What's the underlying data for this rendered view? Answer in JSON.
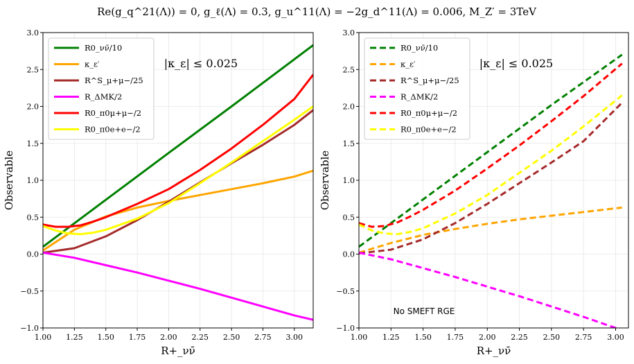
{
  "figure": {
    "title": "Re(g_q^21(Λ)) = 0,   g_ℓ(Λ) = 0.3,   g_u^11(Λ) = −2g_d^11(Λ) = 0.006,   M_Z′ = 3TeV"
  },
  "chart_data": [
    {
      "type": "line",
      "panel": "left",
      "xlabel": "R+_νν̄",
      "ylabel": "Observable",
      "xlim": [
        1.0,
        3.15
      ],
      "ylim": [
        -1.0,
        3.0
      ],
      "xticks": [
        "1.00",
        "1.25",
        "1.50",
        "1.75",
        "2.00",
        "2.25",
        "2.50",
        "2.75",
        "3.00"
      ],
      "yticks": [
        "−1.0",
        "−0.5",
        "0.0",
        "0.5",
        "1.0",
        "1.5",
        "2.0",
        "2.5",
        "3.0"
      ],
      "grid": true,
      "legend_position": "top-left",
      "annotation": "|κ_ε| ≤ 0.025",
      "line_style": "solid",
      "series": [
        {
          "name": "R0_νν̄/10",
          "color": "#008000",
          "x": [
            1.0,
            1.5,
            2.0,
            2.5,
            3.15
          ],
          "y": [
            0.1,
            0.735,
            1.37,
            2.0,
            2.83
          ]
        },
        {
          "name": "κ_ε′",
          "color": "#FFA500",
          "x": [
            1.0,
            1.25,
            1.5,
            1.75,
            2.0,
            2.25,
            2.5,
            2.75,
            3.0,
            3.15
          ],
          "y": [
            0.05,
            0.33,
            0.51,
            0.63,
            0.72,
            0.8,
            0.88,
            0.96,
            1.05,
            1.13
          ]
        },
        {
          "name": "R^S_μ+μ−/25",
          "color": "#A52A2A",
          "x": [
            1.0,
            1.25,
            1.5,
            1.75,
            2.0,
            2.25,
            2.5,
            2.75,
            3.0,
            3.15
          ],
          "y": [
            0.02,
            0.08,
            0.24,
            0.46,
            0.71,
            0.97,
            1.23,
            1.48,
            1.75,
            1.95
          ]
        },
        {
          "name": "R_ΔMK/2",
          "color": "#FF00FF",
          "x": [
            1.0,
            1.25,
            1.5,
            1.75,
            2.0,
            2.25,
            2.5,
            2.75,
            3.0,
            3.15
          ],
          "y": [
            0.02,
            -0.05,
            -0.15,
            -0.25,
            -0.36,
            -0.47,
            -0.59,
            -0.71,
            -0.83,
            -0.89
          ]
        },
        {
          "name": "R0_π0μ+μ−/2",
          "color": "#FF0000",
          "x": [
            1.0,
            1.1,
            1.2,
            1.3,
            1.4,
            1.5,
            1.75,
            2.0,
            2.25,
            2.5,
            2.75,
            3.0,
            3.15
          ],
          "y": [
            0.4,
            0.37,
            0.37,
            0.39,
            0.44,
            0.5,
            0.68,
            0.88,
            1.14,
            1.43,
            1.75,
            2.1,
            2.43
          ]
        },
        {
          "name": "R0_π0e+e−/2",
          "color": "#FFFF00",
          "x": [
            1.0,
            1.1,
            1.2,
            1.3,
            1.4,
            1.5,
            1.75,
            2.0,
            2.25,
            2.5,
            2.75,
            3.0,
            3.15
          ],
          "y": [
            0.38,
            0.32,
            0.28,
            0.27,
            0.29,
            0.33,
            0.48,
            0.69,
            0.96,
            1.24,
            1.53,
            1.82,
            2.0
          ]
        }
      ]
    },
    {
      "type": "line",
      "panel": "right",
      "xlabel": "R+_νν̄",
      "ylabel": "Observable",
      "xlim": [
        1.0,
        3.1
      ],
      "ylim": [
        -1.0,
        3.0
      ],
      "xticks": [
        "1.00",
        "1.25",
        "1.50",
        "1.75",
        "2.00",
        "2.25",
        "2.50",
        "2.75",
        "3.00"
      ],
      "yticks": [
        "−1.0",
        "−0.5",
        "0.0",
        "0.5",
        "1.0",
        "1.5",
        "2.0",
        "2.5",
        "3.0"
      ],
      "grid": true,
      "legend_position": "top-left",
      "annotation": "|κ_ε| ≤ 0.025",
      "note": "No SMEFT RGE",
      "line_style": "dashed",
      "series": [
        {
          "name": "R0_νν̄/10",
          "color": "#008000",
          "x": [
            1.0,
            1.5,
            2.0,
            2.5,
            3.05
          ],
          "y": [
            0.1,
            0.74,
            1.38,
            2.02,
            2.7
          ]
        },
        {
          "name": "κ_ε′",
          "color": "#FFA500",
          "x": [
            1.0,
            1.25,
            1.5,
            1.75,
            2.0,
            2.25,
            2.5,
            2.75,
            3.05
          ],
          "y": [
            0.02,
            0.15,
            0.26,
            0.34,
            0.41,
            0.47,
            0.52,
            0.57,
            0.63
          ]
        },
        {
          "name": "R^S_μ+μ−/25",
          "color": "#A52A2A",
          "x": [
            1.0,
            1.25,
            1.5,
            1.75,
            2.0,
            2.25,
            2.5,
            2.75,
            3.05
          ],
          "y": [
            0.01,
            0.06,
            0.2,
            0.42,
            0.68,
            0.96,
            1.24,
            1.53,
            2.05
          ]
        },
        {
          "name": "R_ΔMK/2",
          "color": "#FF00FF",
          "x": [
            1.0,
            1.25,
            1.5,
            1.75,
            2.0,
            2.25,
            2.5,
            2.75,
            3.05
          ],
          "y": [
            0.02,
            -0.07,
            -0.19,
            -0.31,
            -0.44,
            -0.57,
            -0.71,
            -0.85,
            -1.03
          ]
        },
        {
          "name": "R0_π0μ+μ−/2",
          "color": "#FF0000",
          "x": [
            1.0,
            1.1,
            1.2,
            1.3,
            1.4,
            1.5,
            1.75,
            2.0,
            2.25,
            2.5,
            2.75,
            3.05
          ],
          "y": [
            0.42,
            0.37,
            0.38,
            0.43,
            0.51,
            0.6,
            0.86,
            1.16,
            1.47,
            1.8,
            2.14,
            2.58
          ]
        },
        {
          "name": "R0_π0e+e−/2",
          "color": "#FFFF00",
          "x": [
            1.0,
            1.1,
            1.2,
            1.3,
            1.4,
            1.5,
            1.75,
            2.0,
            2.25,
            2.5,
            2.75,
            3.05
          ],
          "y": [
            0.4,
            0.32,
            0.28,
            0.27,
            0.3,
            0.35,
            0.55,
            0.8,
            1.1,
            1.4,
            1.73,
            2.15
          ]
        }
      ]
    }
  ]
}
